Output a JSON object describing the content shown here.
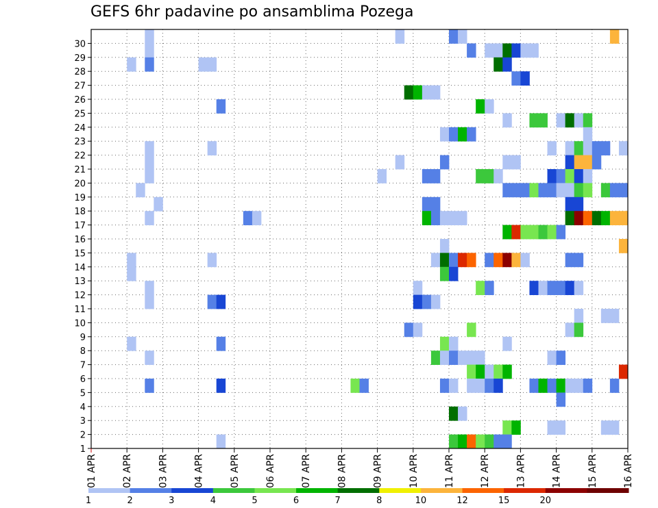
{
  "chart_data": {
    "type": "heatmap",
    "title": "GEFS 6hr padavine po ansamblima Pozega",
    "xlabel": "",
    "ylabel": "",
    "x_ticks": [
      "01 APR",
      "02 APR",
      "03 APR",
      "04 APR",
      "05 APR",
      "06 APR",
      "07 APR",
      "08 APR",
      "09 APR",
      "10 APR",
      "11 APR",
      "12 APR",
      "13 APR",
      "14 APR",
      "15 APR",
      "16 APR"
    ],
    "y_ticks": [
      "1",
      "2",
      "3",
      "4",
      "5",
      "6",
      "7",
      "8",
      "9",
      "10",
      "11",
      "12",
      "13",
      "14",
      "15",
      "16",
      "17",
      "18",
      "19",
      "20",
      "21",
      "22",
      "23",
      "24",
      "25",
      "26",
      "27",
      "28",
      "29",
      "30"
    ],
    "xlim": [
      0,
      60
    ],
    "ylim": [
      0,
      30
    ],
    "grid": true,
    "colorbar": {
      "levels": [
        "1",
        "2",
        "3",
        "4",
        "5",
        "6",
        "7",
        "8",
        "10",
        "12",
        "15",
        "20"
      ],
      "colors": [
        "#b0c4f4",
        "#5580e6",
        "#1846d4",
        "#3cc83c",
        "#78e650",
        "#00b400",
        "#006e00",
        "#f0f000",
        "#fcb43c",
        "#fc6400",
        "#dc2800",
        "#8c0000",
        "#6e0000"
      ]
    },
    "cells": [
      {
        "m": 30,
        "t": 6,
        "v": 1
      },
      {
        "m": 30,
        "t": 34,
        "v": 1
      },
      {
        "m": 30,
        "t": 40,
        "v": 2
      },
      {
        "m": 30,
        "t": 41,
        "v": 1
      },
      {
        "m": 30,
        "t": 58,
        "v": 10
      },
      {
        "m": 29,
        "t": 6,
        "v": 1
      },
      {
        "m": 29,
        "t": 42,
        "v": 2
      },
      {
        "m": 29,
        "t": 44,
        "v": 1
      },
      {
        "m": 29,
        "t": 45,
        "v": 1
      },
      {
        "m": 29,
        "t": 46,
        "v": 7
      },
      {
        "m": 29,
        "t": 47,
        "v": 3
      },
      {
        "m": 29,
        "t": 48,
        "v": 1
      },
      {
        "m": 29,
        "t": 49,
        "v": 1
      },
      {
        "m": 28,
        "t": 4,
        "v": 1
      },
      {
        "m": 28,
        "t": 6,
        "v": 2
      },
      {
        "m": 28,
        "t": 12,
        "v": 1
      },
      {
        "m": 28,
        "t": 13,
        "v": 1
      },
      {
        "m": 28,
        "t": 45,
        "v": 7
      },
      {
        "m": 28,
        "t": 46,
        "v": 3
      },
      {
        "m": 27,
        "t": 47,
        "v": 2
      },
      {
        "m": 27,
        "t": 48,
        "v": 3
      },
      {
        "m": 26,
        "t": 35,
        "v": 7
      },
      {
        "m": 26,
        "t": 36,
        "v": 6
      },
      {
        "m": 26,
        "t": 37,
        "v": 1
      },
      {
        "m": 26,
        "t": 38,
        "v": 1
      },
      {
        "m": 25,
        "t": 14,
        "v": 2
      },
      {
        "m": 25,
        "t": 43,
        "v": 6
      },
      {
        "m": 25,
        "t": 44,
        "v": 1
      },
      {
        "m": 24,
        "t": 46,
        "v": 1
      },
      {
        "m": 24,
        "t": 49,
        "v": 4
      },
      {
        "m": 24,
        "t": 50,
        "v": 4
      },
      {
        "m": 24,
        "t": 52,
        "v": 1
      },
      {
        "m": 24,
        "t": 53,
        "v": 7
      },
      {
        "m": 24,
        "t": 54,
        "v": 1
      },
      {
        "m": 24,
        "t": 55,
        "v": 4
      },
      {
        "m": 23,
        "t": 39,
        "v": 1
      },
      {
        "m": 23,
        "t": 40,
        "v": 2
      },
      {
        "m": 23,
        "t": 41,
        "v": 6
      },
      {
        "m": 23,
        "t": 42,
        "v": 2
      },
      {
        "m": 23,
        "t": 55,
        "v": 1
      },
      {
        "m": 22,
        "t": 6,
        "v": 1
      },
      {
        "m": 22,
        "t": 13,
        "v": 1
      },
      {
        "m": 22,
        "t": 51,
        "v": 1
      },
      {
        "m": 22,
        "t": 53,
        "v": 1
      },
      {
        "m": 22,
        "t": 54,
        "v": 4
      },
      {
        "m": 22,
        "t": 55,
        "v": 1
      },
      {
        "m": 22,
        "t": 56,
        "v": 2
      },
      {
        "m": 22,
        "t": 57,
        "v": 2
      },
      {
        "m": 22,
        "t": 59,
        "v": 1
      },
      {
        "m": 21,
        "t": 6,
        "v": 1
      },
      {
        "m": 21,
        "t": 34,
        "v": 1
      },
      {
        "m": 21,
        "t": 39,
        "v": 2
      },
      {
        "m": 21,
        "t": 46,
        "v": 1
      },
      {
        "m": 21,
        "t": 47,
        "v": 1
      },
      {
        "m": 21,
        "t": 53,
        "v": 3
      },
      {
        "m": 21,
        "t": 54,
        "v": 10
      },
      {
        "m": 21,
        "t": 55,
        "v": 10
      },
      {
        "m": 21,
        "t": 56,
        "v": 2
      },
      {
        "m": 20,
        "t": 6,
        "v": 1
      },
      {
        "m": 20,
        "t": 32,
        "v": 1
      },
      {
        "m": 20,
        "t": 37,
        "v": 2
      },
      {
        "m": 20,
        "t": 38,
        "v": 2
      },
      {
        "m": 20,
        "t": 43,
        "v": 4
      },
      {
        "m": 20,
        "t": 44,
        "v": 4
      },
      {
        "m": 20,
        "t": 45,
        "v": 1
      },
      {
        "m": 20,
        "t": 51,
        "v": 3
      },
      {
        "m": 20,
        "t": 52,
        "v": 2
      },
      {
        "m": 20,
        "t": 53,
        "v": 5
      },
      {
        "m": 20,
        "t": 54,
        "v": 3
      },
      {
        "m": 20,
        "t": 55,
        "v": 1
      },
      {
        "m": 19,
        "t": 5,
        "v": 1
      },
      {
        "m": 19,
        "t": 46,
        "v": 2
      },
      {
        "m": 19,
        "t": 47,
        "v": 2
      },
      {
        "m": 19,
        "t": 48,
        "v": 2
      },
      {
        "m": 19,
        "t": 49,
        "v": 5
      },
      {
        "m": 19,
        "t": 50,
        "v": 2
      },
      {
        "m": 19,
        "t": 51,
        "v": 2
      },
      {
        "m": 19,
        "t": 52,
        "v": 1
      },
      {
        "m": 19,
        "t": 53,
        "v": 1
      },
      {
        "m": 19,
        "t": 54,
        "v": 4
      },
      {
        "m": 19,
        "t": 55,
        "v": 5
      },
      {
        "m": 19,
        "t": 57,
        "v": 4
      },
      {
        "m": 19,
        "t": 58,
        "v": 2
      },
      {
        "m": 19,
        "t": 59,
        "v": 2
      },
      {
        "m": 18,
        "t": 7,
        "v": 1
      },
      {
        "m": 18,
        "t": 37,
        "v": 2
      },
      {
        "m": 18,
        "t": 38,
        "v": 2
      },
      {
        "m": 18,
        "t": 53,
        "v": 3
      },
      {
        "m": 18,
        "t": 54,
        "v": 3
      },
      {
        "m": 17,
        "t": 6,
        "v": 1
      },
      {
        "m": 17,
        "t": 17,
        "v": 2
      },
      {
        "m": 17,
        "t": 18,
        "v": 1
      },
      {
        "m": 17,
        "t": 37,
        "v": 6
      },
      {
        "m": 17,
        "t": 38,
        "v": 2
      },
      {
        "m": 17,
        "t": 39,
        "v": 1
      },
      {
        "m": 17,
        "t": 40,
        "v": 1
      },
      {
        "m": 17,
        "t": 41,
        "v": 1
      },
      {
        "m": 17,
        "t": 53,
        "v": 7
      },
      {
        "m": 17,
        "t": 54,
        "v": 20
      },
      {
        "m": 17,
        "t": 55,
        "v": 12
      },
      {
        "m": 17,
        "t": 56,
        "v": 7
      },
      {
        "m": 17,
        "t": 57,
        "v": 6
      },
      {
        "m": 17,
        "t": 58,
        "v": 10
      },
      {
        "m": 17,
        "t": 59,
        "v": 10
      },
      {
        "m": 16,
        "t": 46,
        "v": 6
      },
      {
        "m": 16,
        "t": 47,
        "v": 15
      },
      {
        "m": 16,
        "t": 48,
        "v": 5
      },
      {
        "m": 16,
        "t": 49,
        "v": 5
      },
      {
        "m": 16,
        "t": 50,
        "v": 4
      },
      {
        "m": 16,
        "t": 51,
        "v": 5
      },
      {
        "m": 16,
        "t": 52,
        "v": 2
      },
      {
        "m": 15,
        "t": 39,
        "v": 1
      },
      {
        "m": 15,
        "t": 59,
        "v": 10
      },
      {
        "m": 14,
        "t": 4,
        "v": 1
      },
      {
        "m": 14,
        "t": 13,
        "v": 1
      },
      {
        "m": 14,
        "t": 38,
        "v": 1
      },
      {
        "m": 14,
        "t": 39,
        "v": 7
      },
      {
        "m": 14,
        "t": 40,
        "v": 2
      },
      {
        "m": 14,
        "t": 41,
        "v": 15
      },
      {
        "m": 14,
        "t": 42,
        "v": 12
      },
      {
        "m": 14,
        "t": 44,
        "v": 2
      },
      {
        "m": 14,
        "t": 45,
        "v": 12
      },
      {
        "m": 14,
        "t": 46,
        "v": 20
      },
      {
        "m": 14,
        "t": 47,
        "v": 10
      },
      {
        "m": 14,
        "t": 48,
        "v": 1
      },
      {
        "m": 14,
        "t": 53,
        "v": 2
      },
      {
        "m": 14,
        "t": 54,
        "v": 2
      },
      {
        "m": 13,
        "t": 4,
        "v": 1
      },
      {
        "m": 13,
        "t": 39,
        "v": 4
      },
      {
        "m": 13,
        "t": 40,
        "v": 3
      },
      {
        "m": 12,
        "t": 6,
        "v": 1
      },
      {
        "m": 12,
        "t": 36,
        "v": 1
      },
      {
        "m": 12,
        "t": 43,
        "v": 5
      },
      {
        "m": 12,
        "t": 44,
        "v": 2
      },
      {
        "m": 12,
        "t": 49,
        "v": 3
      },
      {
        "m": 12,
        "t": 50,
        "v": 1
      },
      {
        "m": 12,
        "t": 51,
        "v": 2
      },
      {
        "m": 12,
        "t": 52,
        "v": 2
      },
      {
        "m": 12,
        "t": 53,
        "v": 3
      },
      {
        "m": 12,
        "t": 54,
        "v": 1
      },
      {
        "m": 11,
        "t": 6,
        "v": 1
      },
      {
        "m": 11,
        "t": 13,
        "v": 2
      },
      {
        "m": 11,
        "t": 14,
        "v": 3
      },
      {
        "m": 11,
        "t": 36,
        "v": 3
      },
      {
        "m": 11,
        "t": 37,
        "v": 2
      },
      {
        "m": 11,
        "t": 38,
        "v": 1
      },
      {
        "m": 10,
        "t": 54,
        "v": 1
      },
      {
        "m": 10,
        "t": 57,
        "v": 1
      },
      {
        "m": 10,
        "t": 58,
        "v": 1
      },
      {
        "m": 9,
        "t": 35,
        "v": 2
      },
      {
        "m": 9,
        "t": 36,
        "v": 1
      },
      {
        "m": 9,
        "t": 42,
        "v": 5
      },
      {
        "m": 9,
        "t": 53,
        "v": 1
      },
      {
        "m": 9,
        "t": 54,
        "v": 4
      },
      {
        "m": 8,
        "t": 4,
        "v": 1
      },
      {
        "m": 8,
        "t": 14,
        "v": 2
      },
      {
        "m": 8,
        "t": 39,
        "v": 5
      },
      {
        "m": 8,
        "t": 40,
        "v": 1
      },
      {
        "m": 8,
        "t": 46,
        "v": 1
      },
      {
        "m": 7,
        "t": 6,
        "v": 1
      },
      {
        "m": 7,
        "t": 38,
        "v": 4
      },
      {
        "m": 7,
        "t": 39,
        "v": 1
      },
      {
        "m": 7,
        "t": 40,
        "v": 2
      },
      {
        "m": 7,
        "t": 41,
        "v": 1
      },
      {
        "m": 7,
        "t": 42,
        "v": 1
      },
      {
        "m": 7,
        "t": 43,
        "v": 1
      },
      {
        "m": 7,
        "t": 51,
        "v": 1
      },
      {
        "m": 7,
        "t": 52,
        "v": 2
      },
      {
        "m": 6,
        "t": 42,
        "v": 5
      },
      {
        "m": 6,
        "t": 43,
        "v": 6
      },
      {
        "m": 6,
        "t": 44,
        "v": 1
      },
      {
        "m": 6,
        "t": 45,
        "v": 5
      },
      {
        "m": 6,
        "t": 46,
        "v": 6
      },
      {
        "m": 6,
        "t": 59,
        "v": 15
      },
      {
        "m": 5,
        "t": 6,
        "v": 2
      },
      {
        "m": 5,
        "t": 14,
        "v": 3
      },
      {
        "m": 5,
        "t": 29,
        "v": 5
      },
      {
        "m": 5,
        "t": 30,
        "v": 2
      },
      {
        "m": 5,
        "t": 39,
        "v": 2
      },
      {
        "m": 5,
        "t": 40,
        "v": 1
      },
      {
        "m": 5,
        "t": 42,
        "v": 1
      },
      {
        "m": 5,
        "t": 43,
        "v": 1
      },
      {
        "m": 5,
        "t": 44,
        "v": 2
      },
      {
        "m": 5,
        "t": 45,
        "v": 3
      },
      {
        "m": 5,
        "t": 49,
        "v": 2
      },
      {
        "m": 5,
        "t": 50,
        "v": 6
      },
      {
        "m": 5,
        "t": 51,
        "v": 2
      },
      {
        "m": 5,
        "t": 52,
        "v": 6
      },
      {
        "m": 5,
        "t": 53,
        "v": 1
      },
      {
        "m": 5,
        "t": 54,
        "v": 1
      },
      {
        "m": 5,
        "t": 55,
        "v": 2
      },
      {
        "m": 5,
        "t": 58,
        "v": 2
      },
      {
        "m": 4,
        "t": 52,
        "v": 2
      },
      {
        "m": 3,
        "t": 40,
        "v": 7
      },
      {
        "m": 3,
        "t": 41,
        "v": 1
      },
      {
        "m": 2,
        "t": 46,
        "v": 5
      },
      {
        "m": 2,
        "t": 47,
        "v": 6
      },
      {
        "m": 2,
        "t": 51,
        "v": 1
      },
      {
        "m": 2,
        "t": 52,
        "v": 1
      },
      {
        "m": 2,
        "t": 57,
        "v": 1
      },
      {
        "m": 2,
        "t": 58,
        "v": 1
      },
      {
        "m": 1,
        "t": 14,
        "v": 1
      },
      {
        "m": 1,
        "t": 40,
        "v": 4
      },
      {
        "m": 1,
        "t": 41,
        "v": 6
      },
      {
        "m": 1,
        "t": 42,
        "v": 12
      },
      {
        "m": 1,
        "t": 43,
        "v": 5
      },
      {
        "m": 1,
        "t": 44,
        "v": 4
      },
      {
        "m": 1,
        "t": 45,
        "v": 2
      },
      {
        "m": 1,
        "t": 46,
        "v": 2
      }
    ]
  }
}
